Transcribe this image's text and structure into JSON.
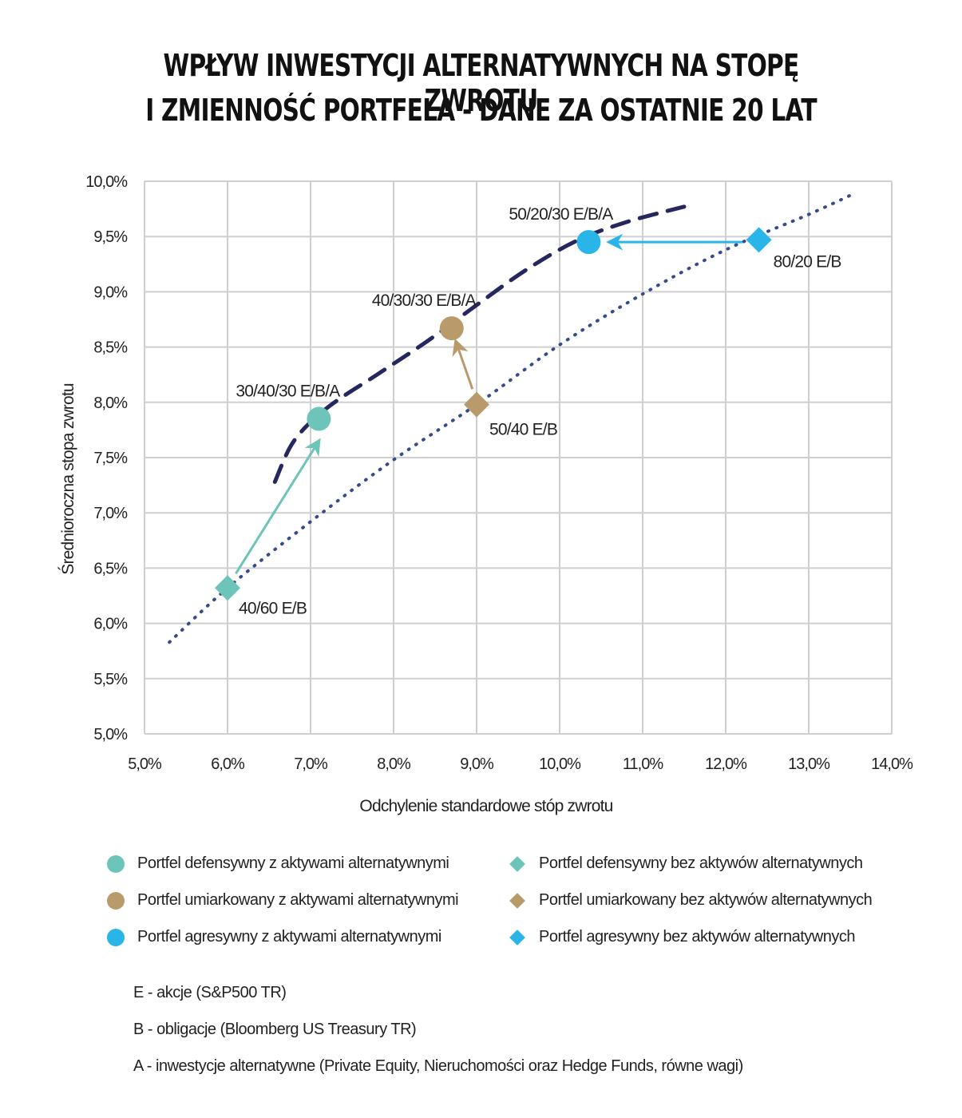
{
  "title_line1": "WPŁYW INWESTYCJI ALTERNATYWNYCH NA STOPĘ ZWROTU",
  "title_line2": "I ZMIENNOŚĆ PORTFELA - DANE ZA OSTATNIE 20 LAT",
  "chart_data": {
    "type": "scatter",
    "xlabel": "Odchylenie standardowe stóp zwrotu",
    "ylabel": "Średnioroczna stopa zwrotu",
    "xlim": [
      5.0,
      14.0
    ],
    "ylim": [
      5.0,
      10.0
    ],
    "x_ticks": [
      "5,0%",
      "6,0%",
      "7,0%",
      "8,0%",
      "9,0%",
      "10,0%",
      "11,0%",
      "12,0%",
      "13,0%",
      "14,0%"
    ],
    "y_ticks": [
      "5,0%",
      "5,5%",
      "6,0%",
      "6,5%",
      "7,0%",
      "7,5%",
      "8,0%",
      "8,5%",
      "9,0%",
      "9,5%",
      "10,0%"
    ],
    "grid": true,
    "series": [
      {
        "name": "Portfel defensywny z aktywami alternatywnymi",
        "marker": "circle",
        "color": "#6cc5b8",
        "x": [
          7.1
        ],
        "y": [
          7.85
        ],
        "label": "30/40/30 E/B/A"
      },
      {
        "name": "Portfel umiarkowany z aktywami alternatywnymi",
        "marker": "circle",
        "color": "#b99b6b",
        "x": [
          8.7
        ],
        "y": [
          8.67
        ],
        "label": "40/30/30 E/B/A"
      },
      {
        "name": "Portfel agresywny z aktywami alternatywnymi",
        "marker": "circle",
        "color": "#29b5e8",
        "x": [
          10.35
        ],
        "y": [
          9.45
        ],
        "label": "50/20/30 E/B/A"
      },
      {
        "name": "Portfel defensywny bez aktywów alternatywnych",
        "marker": "diamond",
        "color": "#6cc5b8",
        "x": [
          6.0
        ],
        "y": [
          6.32
        ],
        "label": "40/60 E/B"
      },
      {
        "name": "Portfel umiarkowany bez aktywów alternatywnych",
        "marker": "diamond",
        "color": "#b99b6b",
        "x": [
          9.0
        ],
        "y": [
          7.98
        ],
        "label": "50/40 E/B"
      },
      {
        "name": "Portfel agresywny bez aktywów alternatywnych",
        "marker": "diamond",
        "color": "#29b5e8",
        "x": [
          12.4
        ],
        "y": [
          9.47
        ],
        "label": "80/20 E/B"
      }
    ],
    "frontiers": [
      {
        "style": "dashed",
        "color": "#26275e",
        "x": [
          6.57,
          6.8,
          7.2,
          7.8,
          8.4,
          9.0,
          9.6,
          10.2,
          10.8,
          11.5
        ],
        "y": [
          7.28,
          7.65,
          7.95,
          8.25,
          8.55,
          8.88,
          9.2,
          9.46,
          9.63,
          9.77
        ]
      },
      {
        "style": "dotted",
        "color": "#364b8c",
        "x": [
          5.3,
          6.0,
          7.0,
          8.0,
          9.0,
          10.0,
          11.0,
          12.0,
          13.0,
          13.55
        ],
        "y": [
          5.83,
          6.32,
          6.92,
          7.48,
          7.98,
          8.52,
          8.98,
          9.38,
          9.7,
          9.89
        ]
      }
    ],
    "arrows": [
      {
        "from": [
          6.1,
          6.45
        ],
        "to": [
          7.1,
          7.65
        ],
        "color": "#6cc5b8"
      },
      {
        "from": [
          8.95,
          8.12
        ],
        "to": [
          8.75,
          8.55
        ],
        "color": "#b99b6b"
      },
      {
        "from": [
          12.2,
          9.45
        ],
        "to": [
          10.6,
          9.45
        ],
        "color": "#29b5e8"
      }
    ],
    "legend_position": "bottom"
  },
  "legend": [
    {
      "label": "Portfel defensywny z aktywami alternatywnymi",
      "marker": "circle",
      "color": "#6cc5b8"
    },
    {
      "label": "Portfel umiarkowany z aktywami alternatywnymi",
      "marker": "circle",
      "color": "#b99b6b"
    },
    {
      "label": "Portfel agresywny z aktywami alternatywnymi",
      "marker": "circle",
      "color": "#29b5e8"
    },
    {
      "label": "Portfel defensywny bez aktywów alternatywnych",
      "marker": "diamond",
      "color": "#6cc5b8"
    },
    {
      "label": "Portfel umiarkowany bez aktywów alternatywnych",
      "marker": "diamond",
      "color": "#b99b6b"
    },
    {
      "label": "Portfel agresywny bez aktywów alternatywnych",
      "marker": "diamond",
      "color": "#29b5e8"
    }
  ],
  "notes": [
    "E - akcje (S&P500 TR)",
    "B - obligacje (Bloomberg US Treasury TR)",
    "A - inwestycje alternatywne (Private Equity, Nieruchomości oraz Hedge Funds, równe wagi)"
  ]
}
